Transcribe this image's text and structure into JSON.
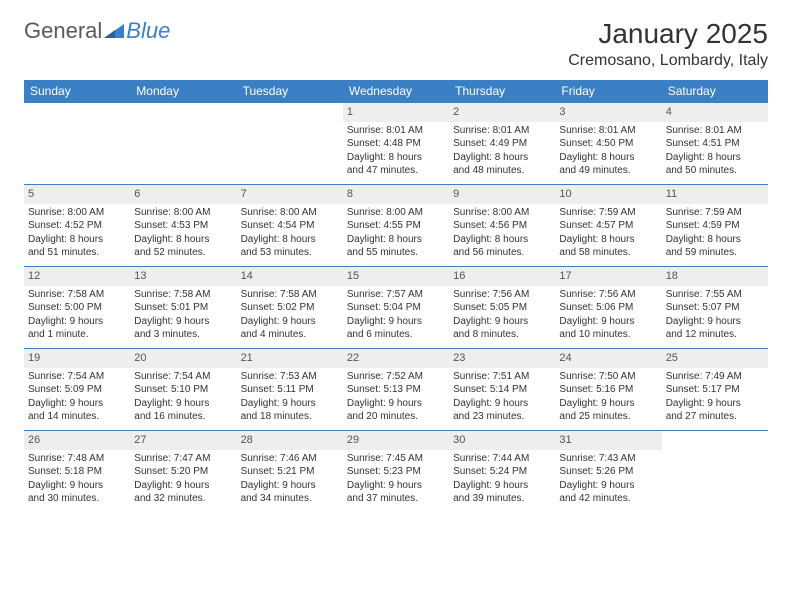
{
  "brand": {
    "text1": "General",
    "text2": "Blue"
  },
  "title": "January 2025",
  "location": "Cremosano, Lombardy, Italy",
  "colors": {
    "header_bg": "#3b7fc4",
    "header_text": "#ffffff",
    "cell_border": "#3b7fc4",
    "daynum_bg": "#eeeeee",
    "text": "#333333",
    "background": "#ffffff"
  },
  "weekdays": [
    "Sunday",
    "Monday",
    "Tuesday",
    "Wednesday",
    "Thursday",
    "Friday",
    "Saturday"
  ],
  "grid": [
    [
      null,
      null,
      null,
      {
        "n": "1",
        "sr": "Sunrise: 8:01 AM",
        "ss": "Sunset: 4:48 PM",
        "d1": "Daylight: 8 hours",
        "d2": "and 47 minutes."
      },
      {
        "n": "2",
        "sr": "Sunrise: 8:01 AM",
        "ss": "Sunset: 4:49 PM",
        "d1": "Daylight: 8 hours",
        "d2": "and 48 minutes."
      },
      {
        "n": "3",
        "sr": "Sunrise: 8:01 AM",
        "ss": "Sunset: 4:50 PM",
        "d1": "Daylight: 8 hours",
        "d2": "and 49 minutes."
      },
      {
        "n": "4",
        "sr": "Sunrise: 8:01 AM",
        "ss": "Sunset: 4:51 PM",
        "d1": "Daylight: 8 hours",
        "d2": "and 50 minutes."
      }
    ],
    [
      {
        "n": "5",
        "sr": "Sunrise: 8:00 AM",
        "ss": "Sunset: 4:52 PM",
        "d1": "Daylight: 8 hours",
        "d2": "and 51 minutes."
      },
      {
        "n": "6",
        "sr": "Sunrise: 8:00 AM",
        "ss": "Sunset: 4:53 PM",
        "d1": "Daylight: 8 hours",
        "d2": "and 52 minutes."
      },
      {
        "n": "7",
        "sr": "Sunrise: 8:00 AM",
        "ss": "Sunset: 4:54 PM",
        "d1": "Daylight: 8 hours",
        "d2": "and 53 minutes."
      },
      {
        "n": "8",
        "sr": "Sunrise: 8:00 AM",
        "ss": "Sunset: 4:55 PM",
        "d1": "Daylight: 8 hours",
        "d2": "and 55 minutes."
      },
      {
        "n": "9",
        "sr": "Sunrise: 8:00 AM",
        "ss": "Sunset: 4:56 PM",
        "d1": "Daylight: 8 hours",
        "d2": "and 56 minutes."
      },
      {
        "n": "10",
        "sr": "Sunrise: 7:59 AM",
        "ss": "Sunset: 4:57 PM",
        "d1": "Daylight: 8 hours",
        "d2": "and 58 minutes."
      },
      {
        "n": "11",
        "sr": "Sunrise: 7:59 AM",
        "ss": "Sunset: 4:59 PM",
        "d1": "Daylight: 8 hours",
        "d2": "and 59 minutes."
      }
    ],
    [
      {
        "n": "12",
        "sr": "Sunrise: 7:58 AM",
        "ss": "Sunset: 5:00 PM",
        "d1": "Daylight: 9 hours",
        "d2": "and 1 minute."
      },
      {
        "n": "13",
        "sr": "Sunrise: 7:58 AM",
        "ss": "Sunset: 5:01 PM",
        "d1": "Daylight: 9 hours",
        "d2": "and 3 minutes."
      },
      {
        "n": "14",
        "sr": "Sunrise: 7:58 AM",
        "ss": "Sunset: 5:02 PM",
        "d1": "Daylight: 9 hours",
        "d2": "and 4 minutes."
      },
      {
        "n": "15",
        "sr": "Sunrise: 7:57 AM",
        "ss": "Sunset: 5:04 PM",
        "d1": "Daylight: 9 hours",
        "d2": "and 6 minutes."
      },
      {
        "n": "16",
        "sr": "Sunrise: 7:56 AM",
        "ss": "Sunset: 5:05 PM",
        "d1": "Daylight: 9 hours",
        "d2": "and 8 minutes."
      },
      {
        "n": "17",
        "sr": "Sunrise: 7:56 AM",
        "ss": "Sunset: 5:06 PM",
        "d1": "Daylight: 9 hours",
        "d2": "and 10 minutes."
      },
      {
        "n": "18",
        "sr": "Sunrise: 7:55 AM",
        "ss": "Sunset: 5:07 PM",
        "d1": "Daylight: 9 hours",
        "d2": "and 12 minutes."
      }
    ],
    [
      {
        "n": "19",
        "sr": "Sunrise: 7:54 AM",
        "ss": "Sunset: 5:09 PM",
        "d1": "Daylight: 9 hours",
        "d2": "and 14 minutes."
      },
      {
        "n": "20",
        "sr": "Sunrise: 7:54 AM",
        "ss": "Sunset: 5:10 PM",
        "d1": "Daylight: 9 hours",
        "d2": "and 16 minutes."
      },
      {
        "n": "21",
        "sr": "Sunrise: 7:53 AM",
        "ss": "Sunset: 5:11 PM",
        "d1": "Daylight: 9 hours",
        "d2": "and 18 minutes."
      },
      {
        "n": "22",
        "sr": "Sunrise: 7:52 AM",
        "ss": "Sunset: 5:13 PM",
        "d1": "Daylight: 9 hours",
        "d2": "and 20 minutes."
      },
      {
        "n": "23",
        "sr": "Sunrise: 7:51 AM",
        "ss": "Sunset: 5:14 PM",
        "d1": "Daylight: 9 hours",
        "d2": "and 23 minutes."
      },
      {
        "n": "24",
        "sr": "Sunrise: 7:50 AM",
        "ss": "Sunset: 5:16 PM",
        "d1": "Daylight: 9 hours",
        "d2": "and 25 minutes."
      },
      {
        "n": "25",
        "sr": "Sunrise: 7:49 AM",
        "ss": "Sunset: 5:17 PM",
        "d1": "Daylight: 9 hours",
        "d2": "and 27 minutes."
      }
    ],
    [
      {
        "n": "26",
        "sr": "Sunrise: 7:48 AM",
        "ss": "Sunset: 5:18 PM",
        "d1": "Daylight: 9 hours",
        "d2": "and 30 minutes."
      },
      {
        "n": "27",
        "sr": "Sunrise: 7:47 AM",
        "ss": "Sunset: 5:20 PM",
        "d1": "Daylight: 9 hours",
        "d2": "and 32 minutes."
      },
      {
        "n": "28",
        "sr": "Sunrise: 7:46 AM",
        "ss": "Sunset: 5:21 PM",
        "d1": "Daylight: 9 hours",
        "d2": "and 34 minutes."
      },
      {
        "n": "29",
        "sr": "Sunrise: 7:45 AM",
        "ss": "Sunset: 5:23 PM",
        "d1": "Daylight: 9 hours",
        "d2": "and 37 minutes."
      },
      {
        "n": "30",
        "sr": "Sunrise: 7:44 AM",
        "ss": "Sunset: 5:24 PM",
        "d1": "Daylight: 9 hours",
        "d2": "and 39 minutes."
      },
      {
        "n": "31",
        "sr": "Sunrise: 7:43 AM",
        "ss": "Sunset: 5:26 PM",
        "d1": "Daylight: 9 hours",
        "d2": "and 42 minutes."
      },
      null
    ]
  ]
}
